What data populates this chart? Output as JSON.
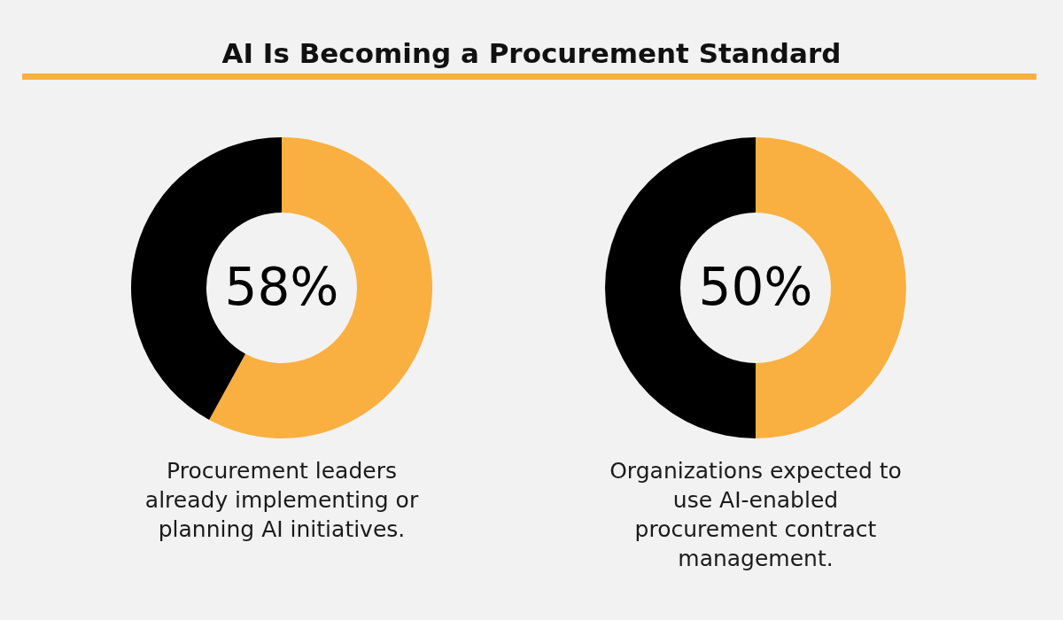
{
  "chart_data": [
    {
      "type": "donut",
      "title": "AI Is Becoming a Procurement Standard",
      "categories": [
        null,
        null
      ],
      "values": [
        58,
        42
      ],
      "colors": [
        "#f9b040",
        "#000000"
      ],
      "value_labels": [
        "58%",
        null
      ],
      "annotations": [
        "Procurement leaders already implementing or planning AI initiatives."
      ]
    },
    {
      "type": "donut",
      "categories": [
        null,
        null
      ],
      "values": [
        50,
        50
      ],
      "colors": [
        "#f9b040",
        "#000000"
      ],
      "value_labels": [
        "50%",
        null
      ],
      "annotations": [
        "Organizations expected to use AI-enabled procurement contract management."
      ]
    }
  ]
}
